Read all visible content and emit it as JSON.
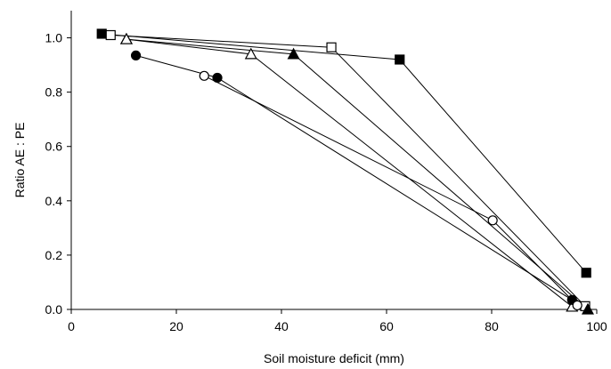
{
  "chart_data": {
    "type": "line",
    "title": "",
    "xlabel": "Soil moisture deficit (mm)",
    "ylabel": "Ratio AE : PE",
    "xlim": [
      0,
      100
    ],
    "ylim": [
      0,
      1.1
    ],
    "xticks": [
      0,
      20,
      40,
      60,
      80,
      100
    ],
    "yticks": [
      0.0,
      0.2,
      0.4,
      0.6,
      0.8,
      1.0
    ],
    "xtick_labels": [
      "0",
      "20",
      "40",
      "60",
      "80",
      "100"
    ],
    "ytick_labels": [
      "0.0",
      "0.2",
      "0.4",
      "0.6",
      "0.8",
      "1.0"
    ],
    "grid": false,
    "legend": "none",
    "series": [
      {
        "marker": "filled-square",
        "points": [
          [
            5.8,
            1.015
          ],
          [
            62.5,
            0.92
          ],
          [
            98.0,
            0.135
          ]
        ]
      },
      {
        "marker": "open-square",
        "points": [
          [
            7.5,
            1.01
          ],
          [
            49.5,
            0.965
          ],
          [
            97.8,
            0.012
          ]
        ]
      },
      {
        "marker": "filled-triangle",
        "points": [
          [
            10.5,
            0.995
          ],
          [
            42.3,
            0.94
          ],
          [
            98.3,
            0.0
          ]
        ]
      },
      {
        "marker": "open-triangle",
        "points": [
          [
            10.5,
            0.995
          ],
          [
            34.2,
            0.94
          ],
          [
            95.3,
            0.01
          ]
        ]
      },
      {
        "marker": "filled-circle",
        "points": [
          [
            12.3,
            0.935
          ],
          [
            27.8,
            0.853
          ],
          [
            95.3,
            0.035
          ]
        ]
      },
      {
        "marker": "open-circle",
        "points": [
          [
            25.3,
            0.86
          ],
          [
            80.2,
            0.328
          ],
          [
            96.3,
            0.015
          ]
        ]
      }
    ]
  }
}
